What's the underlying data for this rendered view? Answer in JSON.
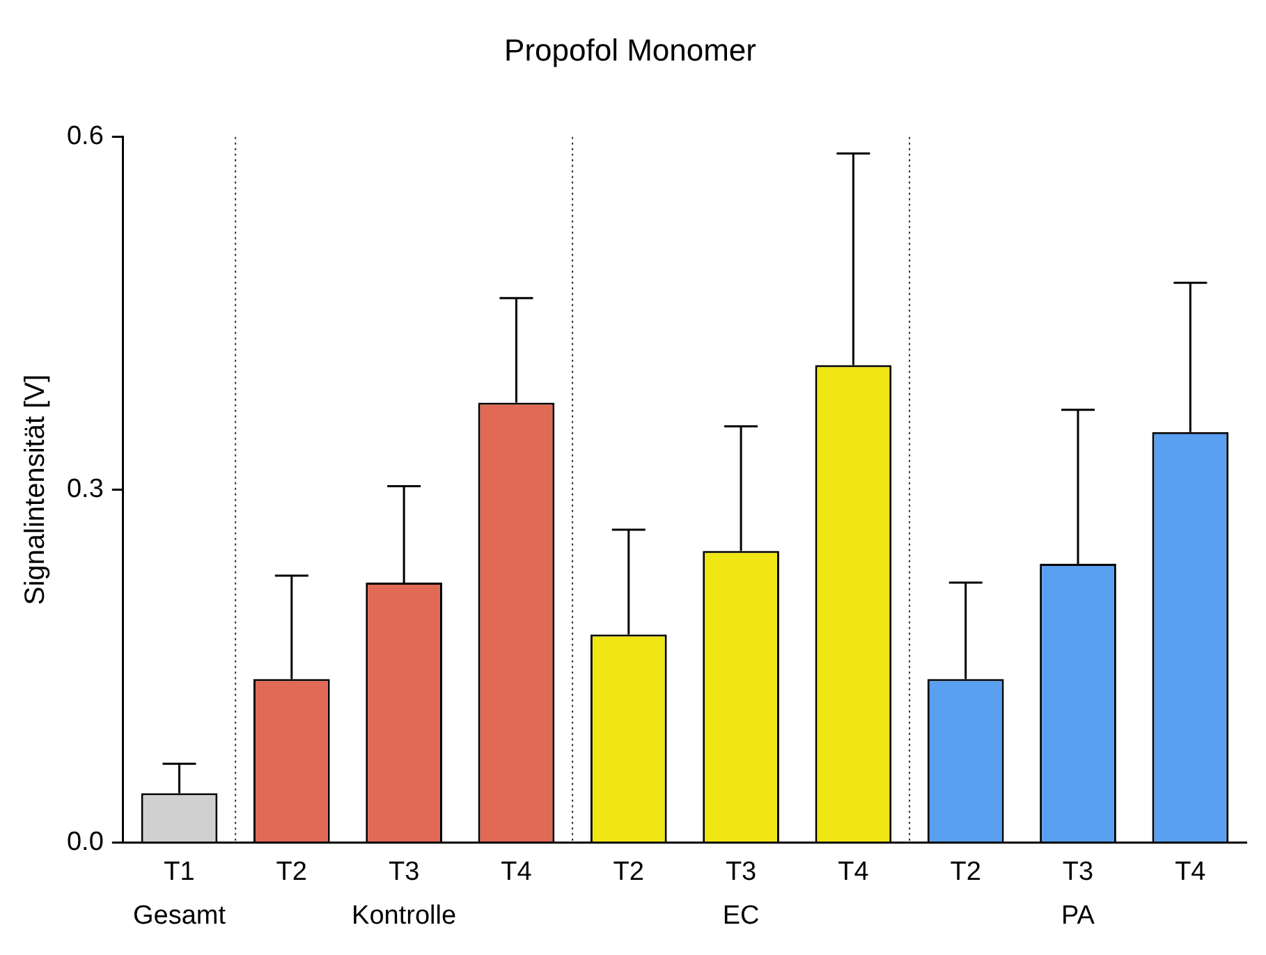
{
  "chart_data": {
    "type": "bar",
    "title": "Propofol Monomer",
    "ylabel": "Signalintensität [V]",
    "categories": [
      "T1",
      "T2",
      "T3",
      "T4",
      "T2",
      "T3",
      "T4",
      "T2",
      "T3",
      "T4"
    ],
    "values": [
      0.042,
      0.139,
      0.221,
      0.374,
      0.177,
      0.248,
      0.406,
      0.139,
      0.237,
      0.349
    ],
    "errors": [
      [
        0.042,
        0.067
      ],
      [
        0.139,
        0.227
      ],
      [
        0.221,
        0.303
      ],
      [
        0.374,
        0.463
      ],
      [
        0.177,
        0.266
      ],
      [
        0.248,
        0.354
      ],
      [
        0.406,
        0.586
      ],
      [
        0.139,
        0.221
      ],
      [
        0.237,
        0.368
      ],
      [
        0.349,
        0.476
      ]
    ],
    "colors": [
      "#d0d0d0",
      "#e06a56",
      "#e06a56",
      "#e06a56",
      "#f0e616",
      "#f0e616",
      "#f0e616",
      "#5aa0f0",
      "#5aa0f0",
      "#5aa0f0"
    ],
    "ylim": [
      0,
      0.6
    ],
    "yticks": [
      {
        "value": 0,
        "label": "0.0"
      },
      {
        "value": 0.3,
        "label": "0.3"
      },
      {
        "value": 0.6,
        "label": "0.6"
      }
    ],
    "annotations": [
      "Gesamt",
      "Kontrolle",
      "EC",
      "PA"
    ],
    "grid": false,
    "legend": false
  }
}
